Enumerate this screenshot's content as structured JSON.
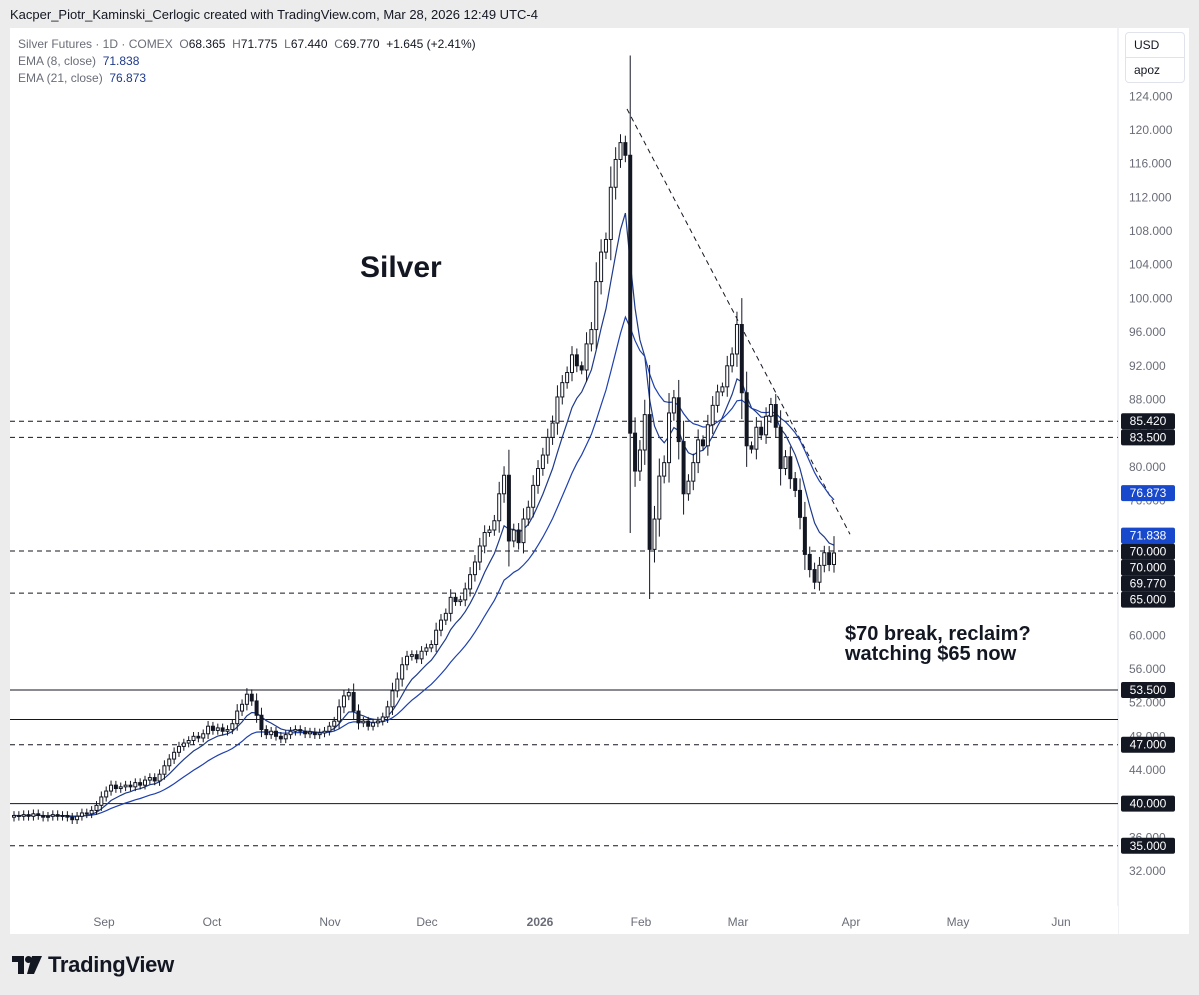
{
  "header": {
    "text": "Kacper_Piotr_Kaminski_Cerlogic created with TradingView.com, Mar 28, 2026 12:49 UTC-4"
  },
  "legend": {
    "symbol": "Silver Futures · 1D · COMEX",
    "o_label": "O",
    "o": "68.365",
    "h_label": "H",
    "h": "71.775",
    "l_label": "L",
    "l": "67.440",
    "c_label": "C",
    "c": "69.770",
    "change": "+1.645 (+2.41%)",
    "ema8_label": "EMA (8, close)",
    "ema8": "71.838",
    "ema21_label": "EMA (21, close)",
    "ema21": "76.873"
  },
  "currency": {
    "usd": "USD",
    "apoz": "apoz"
  },
  "annotations": {
    "title": "Silver",
    "note_line1": "$70 break, reclaim?",
    "note_line2": "watching $65 now"
  },
  "footer": {
    "brand": "TradingView"
  },
  "colors": {
    "ema8": "#1e3a8a",
    "ema21": "#1e40af",
    "candle": "#131722",
    "tag_blue": "#1848cc",
    "tag_dark": "#131722"
  },
  "chart_data": {
    "type": "candlestick",
    "title": "Silver",
    "symbol": "Silver Futures · 1D · COMEX",
    "y_axis_ticks": [
      32,
      36,
      40,
      44,
      48,
      52,
      56,
      60,
      64,
      68,
      72,
      76,
      80,
      84,
      88,
      92,
      96,
      100,
      104,
      108,
      112,
      116,
      120,
      124
    ],
    "y_axis_tick_labels": [
      "32.000",
      "36.000",
      "40.000",
      "44.000",
      "48.000",
      "52.000",
      "56.000",
      "60.000",
      "64.000",
      "68.000",
      "72.000",
      "76.000",
      "80.000",
      "84.000",
      "88.000",
      "92.000",
      "96.000",
      "100.000",
      "104.000",
      "108.000",
      "112.000",
      "116.000",
      "120.000",
      "124.000"
    ],
    "x_axis_labels": [
      "Sep",
      "Oct",
      "Nov",
      "Dec",
      "2026",
      "Feb",
      "Mar",
      "Apr",
      "May",
      "Jun"
    ],
    "ylim": [
      30,
      126
    ],
    "horizontal_lines": [
      {
        "value": 85.42,
        "style": "dashed",
        "label": "85.420"
      },
      {
        "value": 83.5,
        "style": "dashed",
        "label": "83.500"
      },
      {
        "value": 70.0,
        "style": "dashed",
        "label": "70.000"
      },
      {
        "value": 65.0,
        "style": "dashed",
        "label": "65.000"
      },
      {
        "value": 53.5,
        "style": "solid",
        "label": "53.500"
      },
      {
        "value": 50.0,
        "style": "solid",
        "label": ""
      },
      {
        "value": 47.0,
        "style": "dashed",
        "label": "47.000"
      },
      {
        "value": 40.0,
        "style": "solid",
        "label": "40.000"
      },
      {
        "value": 35.0,
        "style": "dashed",
        "label": "35.000"
      }
    ],
    "price_tags": [
      {
        "value": 76.873,
        "label": "76.873",
        "style": "blue"
      },
      {
        "value": 71.838,
        "label": "71.838",
        "style": "blue"
      },
      {
        "value": 70.0,
        "label": "70.000",
        "style": "dark"
      },
      {
        "value": 69.77,
        "label": "69.770",
        "style": "dark"
      }
    ],
    "trendline": {
      "from": {
        "date": "2026-01-29",
        "value": 122.5
      },
      "to": {
        "date": "2026-04-01",
        "value": 72
      }
    },
    "ema_label_8": "EMA (8, close)",
    "ema_label_21": "EMA (21, close)",
    "closes": [
      38.6,
      38.5,
      38.7,
      38.5,
      38.8,
      38.6,
      38.4,
      38.5,
      38.7,
      38.5,
      38.6,
      38.4,
      38.1,
      38.5,
      38.9,
      38.8,
      39.2,
      39.8,
      40.8,
      41.5,
      42.2,
      41.8,
      42.0,
      42.2,
      42.0,
      42.5,
      42.2,
      42.8,
      43.1,
      42.7,
      43.5,
      44.5,
      45.3,
      46.1,
      46.8,
      47.2,
      47.5,
      48.0,
      47.8,
      48.3,
      49.2,
      48.7,
      49.0,
      48.6,
      48.8,
      49.5,
      51.0,
      51.8,
      53.0,
      52.2,
      50.5,
      48.8,
      48.2,
      48.6,
      48.0,
      47.7,
      48.2,
      48.6,
      48.8,
      48.6,
      48.3,
      48.5,
      48.2,
      48.4,
      48.6,
      49.2,
      49.8,
      51.5,
      52.8,
      53.2,
      51.0,
      49.6,
      49.8,
      49.2,
      49.6,
      49.8,
      50.3,
      51.5,
      53.4,
      54.8,
      56.5,
      57.5,
      57.7,
      57.2,
      58.1,
      58.5,
      58.9,
      60.6,
      61.8,
      62.6,
      64.5,
      64.0,
      64.2,
      65.5,
      67.2,
      68.7,
      70.6,
      72.2,
      72.5,
      73.6,
      76.8,
      79.0,
      71.2,
      72.5,
      71.0,
      73.8,
      75.2,
      77.8,
      79.8,
      81.4,
      83.5,
      85.2,
      88.3,
      90.0,
      91.2,
      93.3,
      92.0,
      91.5,
      94.6,
      96.3,
      102.0,
      105.5,
      107.0,
      113.2,
      116.5,
      118.5,
      117.0,
      84.0,
      79.5,
      82.0,
      86.2,
      70.2,
      73.8,
      78.9,
      80.5,
      86.4,
      88.2,
      83.0,
      76.8,
      78.3,
      80.5,
      83.2,
      82.5,
      85.0,
      87.3,
      88.9,
      89.5,
      92.0,
      93.4,
      96.9,
      88.8,
      82.5,
      82.1,
      84.7,
      83.8,
      86.0,
      87.4,
      84.7,
      79.8,
      81.2,
      78.6,
      77.2,
      74.0,
      69.6,
      67.8,
      66.3,
      68.3,
      69.8,
      68.4,
      69.77
    ],
    "ema8_last": 71.838,
    "ema21_last": 76.873,
    "last": {
      "open": 68.365,
      "high": 71.775,
      "low": 67.44,
      "close": 69.77,
      "change": 1.645,
      "change_pct": 2.41
    }
  }
}
